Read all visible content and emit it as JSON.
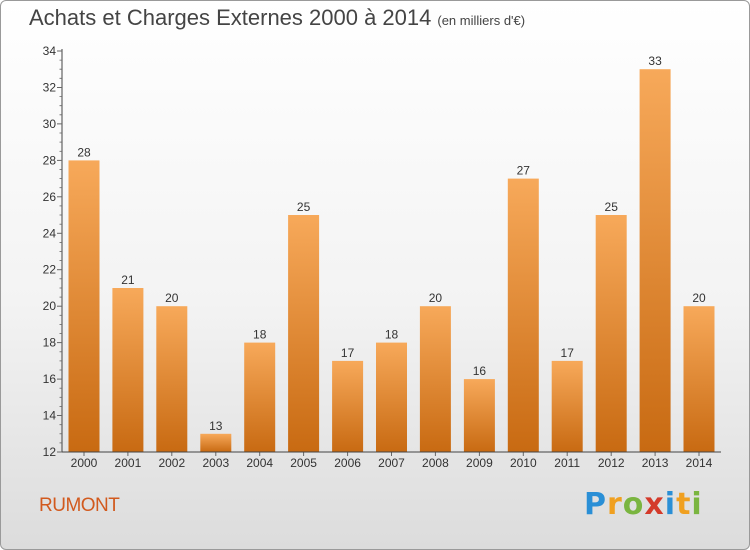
{
  "header": {
    "title": "Achats et Charges Externes 2000 à 2014",
    "subtitle": "(en milliers d'€)"
  },
  "footer": {
    "commune": "RUMONT"
  },
  "logo": {
    "letters": [
      "P",
      "r",
      "o",
      "x",
      "i",
      "t",
      "i"
    ],
    "colors": [
      "#2a8fd6",
      "#f0a020",
      "#7ab540",
      "#d43a2a",
      "#2a8fd6",
      "#f0a020",
      "#7ab540"
    ]
  },
  "colors": {
    "bar_light": "#f7a95a",
    "bar_dark": "#c86a12",
    "axis": "#444444",
    "grid_tick": "#666666"
  },
  "chart_data": {
    "type": "bar",
    "categories": [
      "2000",
      "2001",
      "2002",
      "2003",
      "2004",
      "2005",
      "2006",
      "2007",
      "2008",
      "2009",
      "2010",
      "2011",
      "2012",
      "2013",
      "2014"
    ],
    "values": [
      28,
      21,
      20,
      13,
      18,
      25,
      17,
      18,
      20,
      16,
      27,
      17,
      25,
      33,
      20
    ],
    "ylim": [
      12,
      34
    ],
    "yticks": [
      12,
      14,
      16,
      18,
      20,
      22,
      24,
      26,
      28,
      30,
      32,
      34
    ],
    "grid": false,
    "legend": "none",
    "data_labels": true
  }
}
